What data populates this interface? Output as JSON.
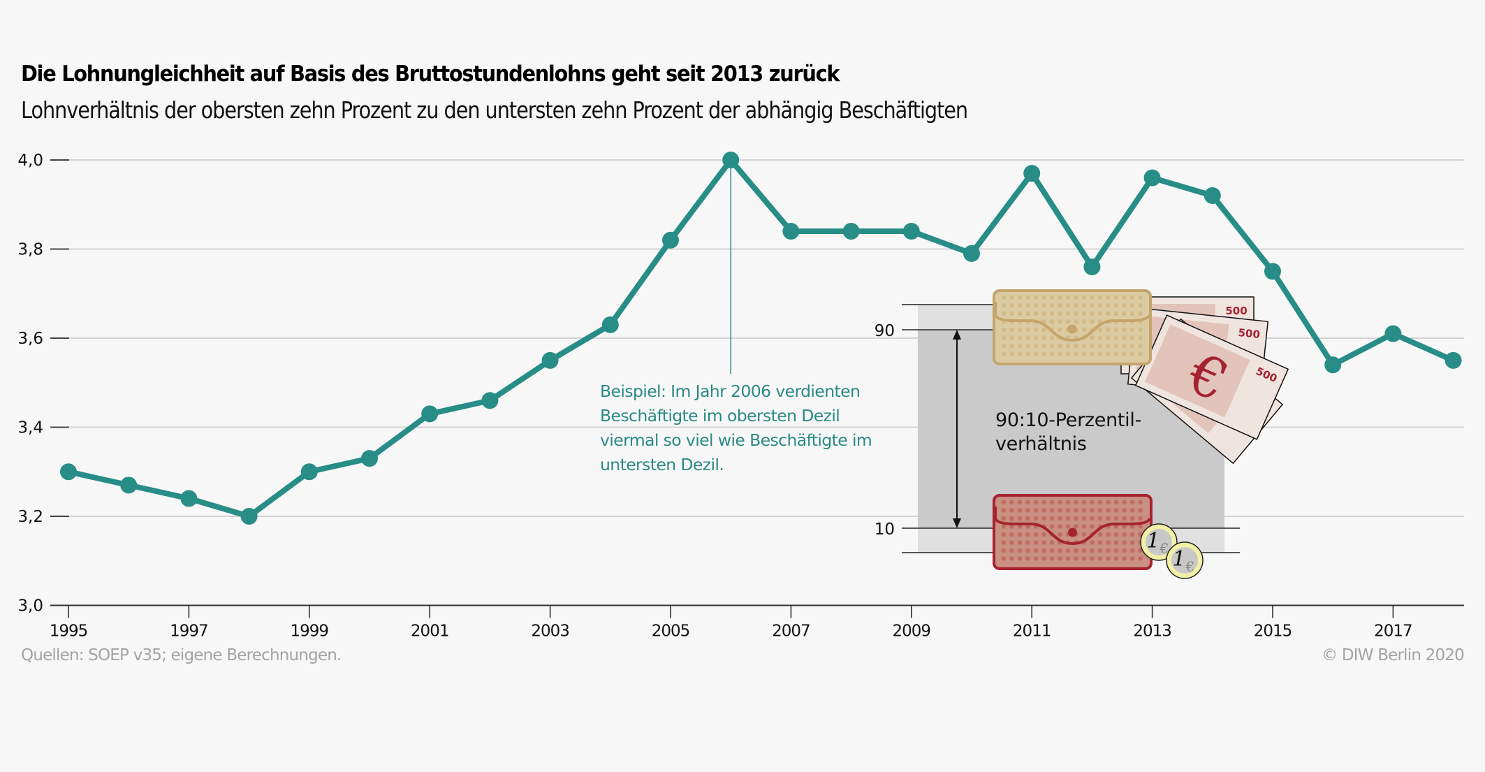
{
  "header": {
    "title": "Die Lohnungleichheit auf Basis des Bruttostundenlohns geht seit 2013 zurück",
    "subtitle": "Lohnverhältnis der obersten zehn Prozent zu den untersten zehn Prozent der abhängig Beschäftigten"
  },
  "footer": {
    "source": "Quellen: SOEP v35; eigene Berechnungen.",
    "copyright": "© DIW Berlin 2020"
  },
  "colors": {
    "line": "#288d87",
    "annotation": "#2a8a84",
    "grid": "#d3d3d3",
    "axis": "#333333",
    "inset_box_dark": "#cacaca",
    "inset_box_light": "#e0e0e0",
    "wallet_top_fill": "#dccaa3",
    "wallet_top_stroke": "#c4a56a",
    "wallet_bottom_fill": "#c98f82",
    "wallet_bottom_stroke": "#a5232f",
    "banknote_fill": "#f0e4df",
    "banknote_inner": "#e2c4bb",
    "banknote_mark": "#a5232f",
    "coin_ring": "#f1f0a6",
    "coin_center": "#c8c8c8"
  },
  "chart_data": {
    "type": "line",
    "title": "Die Lohnungleichheit auf Basis des Bruttostundenlohns geht seit 2013 zurück",
    "subtitle": "Lohnverhältnis der obersten zehn Prozent zu den untersten zehn Prozent der abhängig Beschäftigten",
    "xlabel": "",
    "ylabel": "",
    "x": [
      1995,
      1996,
      1997,
      1998,
      1999,
      2000,
      2001,
      2002,
      2003,
      2004,
      2005,
      2006,
      2007,
      2008,
      2009,
      2010,
      2011,
      2012,
      2013,
      2014,
      2015,
      2016,
      2017,
      2018
    ],
    "series": [
      {
        "name": "90:10-Perzentilverhältnis",
        "values": [
          3.3,
          3.27,
          3.24,
          3.2,
          3.3,
          3.33,
          3.43,
          3.46,
          3.55,
          3.63,
          3.82,
          4.0,
          3.84,
          3.84,
          3.84,
          3.79,
          3.97,
          3.76,
          3.96,
          3.92,
          3.75,
          3.54,
          3.61,
          3.55
        ]
      }
    ],
    "xlim": [
      1995,
      2018
    ],
    "ylim": [
      3.0,
      4.0
    ],
    "yticks": [
      3.0,
      3.2,
      3.4,
      3.6,
      3.8,
      4.0
    ],
    "ytick_labels": [
      "3,0",
      "3,2",
      "3,4",
      "3,6",
      "3,8",
      "4,0"
    ],
    "xticks": [
      1995,
      1997,
      1999,
      2001,
      2003,
      2005,
      2007,
      2009,
      2011,
      2013,
      2015,
      2017
    ],
    "xtick_labels": [
      "1995",
      "1997",
      "1999",
      "2001",
      "2003",
      "2005",
      "2007",
      "2009",
      "2011",
      "2013",
      "2015",
      "2017"
    ],
    "grid": true,
    "legend": "none",
    "annotation": {
      "year": 2006,
      "lines": [
        "Beispiel: Im Jahr 2006 verdienten",
        "Beschäftigte im obersten Dezil",
        "viermal so viel wie Beschäftigte im",
        "untersten Dezil."
      ]
    }
  },
  "inset": {
    "label_90": "90",
    "label_10": "10",
    "text_lines": [
      "90:10-Perzentil-",
      "verhältnis"
    ],
    "banknote_value": "500",
    "banknote_symbol": "€",
    "coin_value": "1",
    "coin_symbol": "€"
  }
}
